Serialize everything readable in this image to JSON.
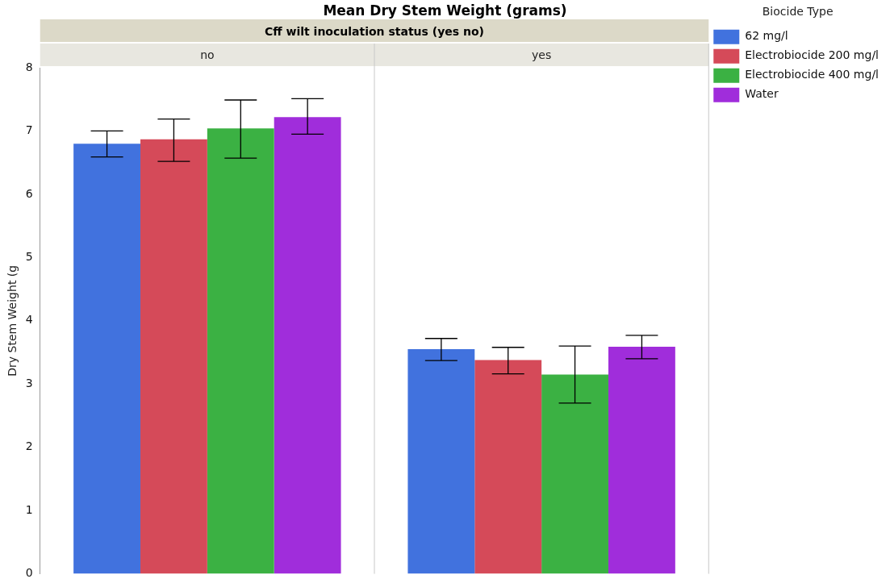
{
  "chart_data": {
    "type": "bar",
    "title": "Mean Dry Stem Weight (grams)",
    "xlabel": "Cff wilt inoculation status (yes no)",
    "ylabel": "Dry Stem Weight (g",
    "legend_title": "Biocide Type",
    "legend": "top right",
    "categories": [
      "no",
      "yes"
    ],
    "series": [
      {
        "name": "62 mg/l",
        "color": "#4172de",
        "values": [
          6.8,
          3.55
        ],
        "errors": [
          [
            6.59,
            7.0
          ],
          [
            3.37,
            3.72
          ]
        ]
      },
      {
        "name": "Electrobiocide 200 mg/l",
        "color": "#d54a59",
        "values": [
          6.87,
          3.38
        ],
        "errors": [
          [
            6.52,
            7.19
          ],
          [
            3.16,
            3.58
          ]
        ]
      },
      {
        "name": "Electrobiocide 400 mg/l",
        "color": "#3bb143",
        "values": [
          7.04,
          3.15
        ],
        "errors": [
          [
            6.57,
            7.49
          ],
          [
            2.7,
            3.6
          ]
        ]
      },
      {
        "name": "Water",
        "color": "#a02ddb",
        "values": [
          7.22,
          3.59
        ],
        "errors": [
          [
            6.95,
            7.51
          ],
          [
            3.4,
            3.77
          ]
        ]
      }
    ],
    "ylim": [
      0,
      8
    ],
    "yticks": [
      0,
      1,
      2,
      3,
      4,
      5,
      6,
      7,
      8
    ]
  }
}
